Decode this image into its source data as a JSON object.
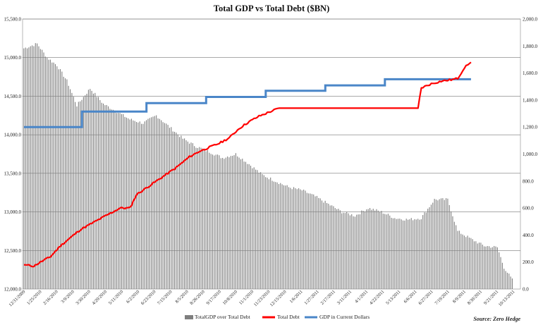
{
  "chart_data": {
    "type": "bar+line",
    "title": "Total GDP vs Total Debt ($BN)",
    "source": "Source: Zero Hedge",
    "left_axis": {
      "ylim": [
        12000,
        15500
      ],
      "ticks": [
        "12,000.0",
        "12,500.0",
        "13,000.0",
        "13,500.0",
        "14,000.0",
        "14,500.0",
        "15,000.0",
        "15,500.0"
      ]
    },
    "right_axis": {
      "ylim": [
        0,
        2000
      ],
      "ticks": [
        "0.0",
        "200.0",
        "400.0",
        "600.0",
        "800.0",
        "1,000.0",
        "1,200.0",
        "1,400.0",
        "1,600.0",
        "1,800.0",
        "2,000.0"
      ]
    },
    "x_tick_labels": [
      "12/31/2009",
      "1/25/2010",
      "2/16/2010",
      "3/9/2010",
      "3/30/2010",
      "4/20/2010",
      "5/11/2010",
      "6/2/2010",
      "6/23/2010",
      "7/15/2010",
      "8/5/2010",
      "8/26/2010",
      "9/17/2010",
      "10/8/2010",
      "11/1/2010",
      "11/23/2010",
      "12/15/2010",
      "1/6/2011",
      "1/27/2011",
      "2/17/2011",
      "3/11/2011",
      "4/1/2011",
      "4/22/2011",
      "5/13/2011",
      "6/6/2011",
      "6/27/2011",
      "7/19/2011",
      "8/9/2011",
      "8/30/2011",
      "9/21/2011",
      "10/13/2011"
    ],
    "legend": {
      "position": "bottom",
      "entries": [
        {
          "name": "TotalGDP over Total Debt",
          "color": "#7f7f7f"
        },
        {
          "name": "Total Debt",
          "color": "#ff0000"
        },
        {
          "name": "GDP in Current Dollars",
          "color": "#4a86c8"
        }
      ]
    },
    "bars_profile": {
      "axis": "left",
      "description_points": [
        [
          0,
          15120
        ],
        [
          8,
          15180
        ],
        [
          14,
          15000
        ],
        [
          20,
          14900
        ],
        [
          26,
          14700
        ],
        [
          32,
          14380
        ],
        [
          40,
          14600
        ],
        [
          48,
          14400
        ],
        [
          56,
          14300
        ],
        [
          64,
          14200
        ],
        [
          72,
          14150
        ],
        [
          80,
          14250
        ],
        [
          88,
          14100
        ],
        [
          96,
          13950
        ],
        [
          104,
          13850
        ],
        [
          112,
          13780
        ],
        [
          120,
          13700
        ],
        [
          128,
          13750
        ],
        [
          136,
          13620
        ],
        [
          144,
          13480
        ],
        [
          152,
          13400
        ],
        [
          160,
          13320
        ],
        [
          168,
          13280
        ],
        [
          176,
          13200
        ],
        [
          184,
          13100
        ],
        [
          192,
          13000
        ],
        [
          200,
          12950
        ],
        [
          208,
          13050
        ],
        [
          216,
          13000
        ],
        [
          224,
          12920
        ],
        [
          232,
          12900
        ],
        [
          240,
          12920
        ],
        [
          248,
          13160
        ],
        [
          256,
          13160
        ],
        [
          262,
          12750
        ],
        [
          270,
          12650
        ],
        [
          278,
          12560
        ],
        [
          286,
          12540
        ],
        [
          290,
          12280
        ],
        [
          295,
          12120
        ]
      ]
    },
    "total_debt_profile": {
      "axis": "right",
      "points": [
        [
          0,
          180
        ],
        [
          6,
          170
        ],
        [
          10,
          200
        ],
        [
          16,
          240
        ],
        [
          22,
          320
        ],
        [
          28,
          380
        ],
        [
          34,
          440
        ],
        [
          40,
          480
        ],
        [
          46,
          520
        ],
        [
          52,
          560
        ],
        [
          58,
          600
        ],
        [
          64,
          600
        ],
        [
          68,
          700
        ],
        [
          74,
          750
        ],
        [
          80,
          800
        ],
        [
          86,
          850
        ],
        [
          92,
          900
        ],
        [
          96,
          940
        ],
        [
          100,
          980
        ],
        [
          106,
          1020
        ],
        [
          112,
          1050
        ],
        [
          118,
          1080
        ],
        [
          124,
          1120
        ],
        [
          130,
          1190
        ],
        [
          136,
          1240
        ],
        [
          142,
          1280
        ],
        [
          148,
          1310
        ],
        [
          154,
          1340
        ],
        [
          160,
          1340
        ],
        [
          168,
          1340
        ],
        [
          176,
          1340
        ],
        [
          184,
          1340
        ],
        [
          192,
          1340
        ],
        [
          200,
          1340
        ],
        [
          208,
          1340
        ],
        [
          216,
          1340
        ],
        [
          224,
          1340
        ],
        [
          232,
          1340
        ],
        [
          238,
          1340
        ],
        [
          240,
          1490
        ],
        [
          246,
          1520
        ],
        [
          252,
          1540
        ],
        [
          258,
          1550
        ],
        [
          262,
          1560
        ],
        [
          266,
          1640
        ],
        [
          270,
          1680
        ]
      ]
    },
    "gdp_profile": {
      "axis": "left",
      "steps": [
        [
          0,
          14100
        ],
        [
          35,
          14100
        ],
        [
          35,
          14300
        ],
        [
          74,
          14300
        ],
        [
          74,
          14410
        ],
        [
          110,
          14410
        ],
        [
          110,
          14490
        ],
        [
          146,
          14490
        ],
        [
          146,
          14570
        ],
        [
          182,
          14570
        ],
        [
          182,
          14640
        ],
        [
          218,
          14640
        ],
        [
          218,
          14720
        ],
        [
          270,
          14720
        ]
      ]
    }
  }
}
